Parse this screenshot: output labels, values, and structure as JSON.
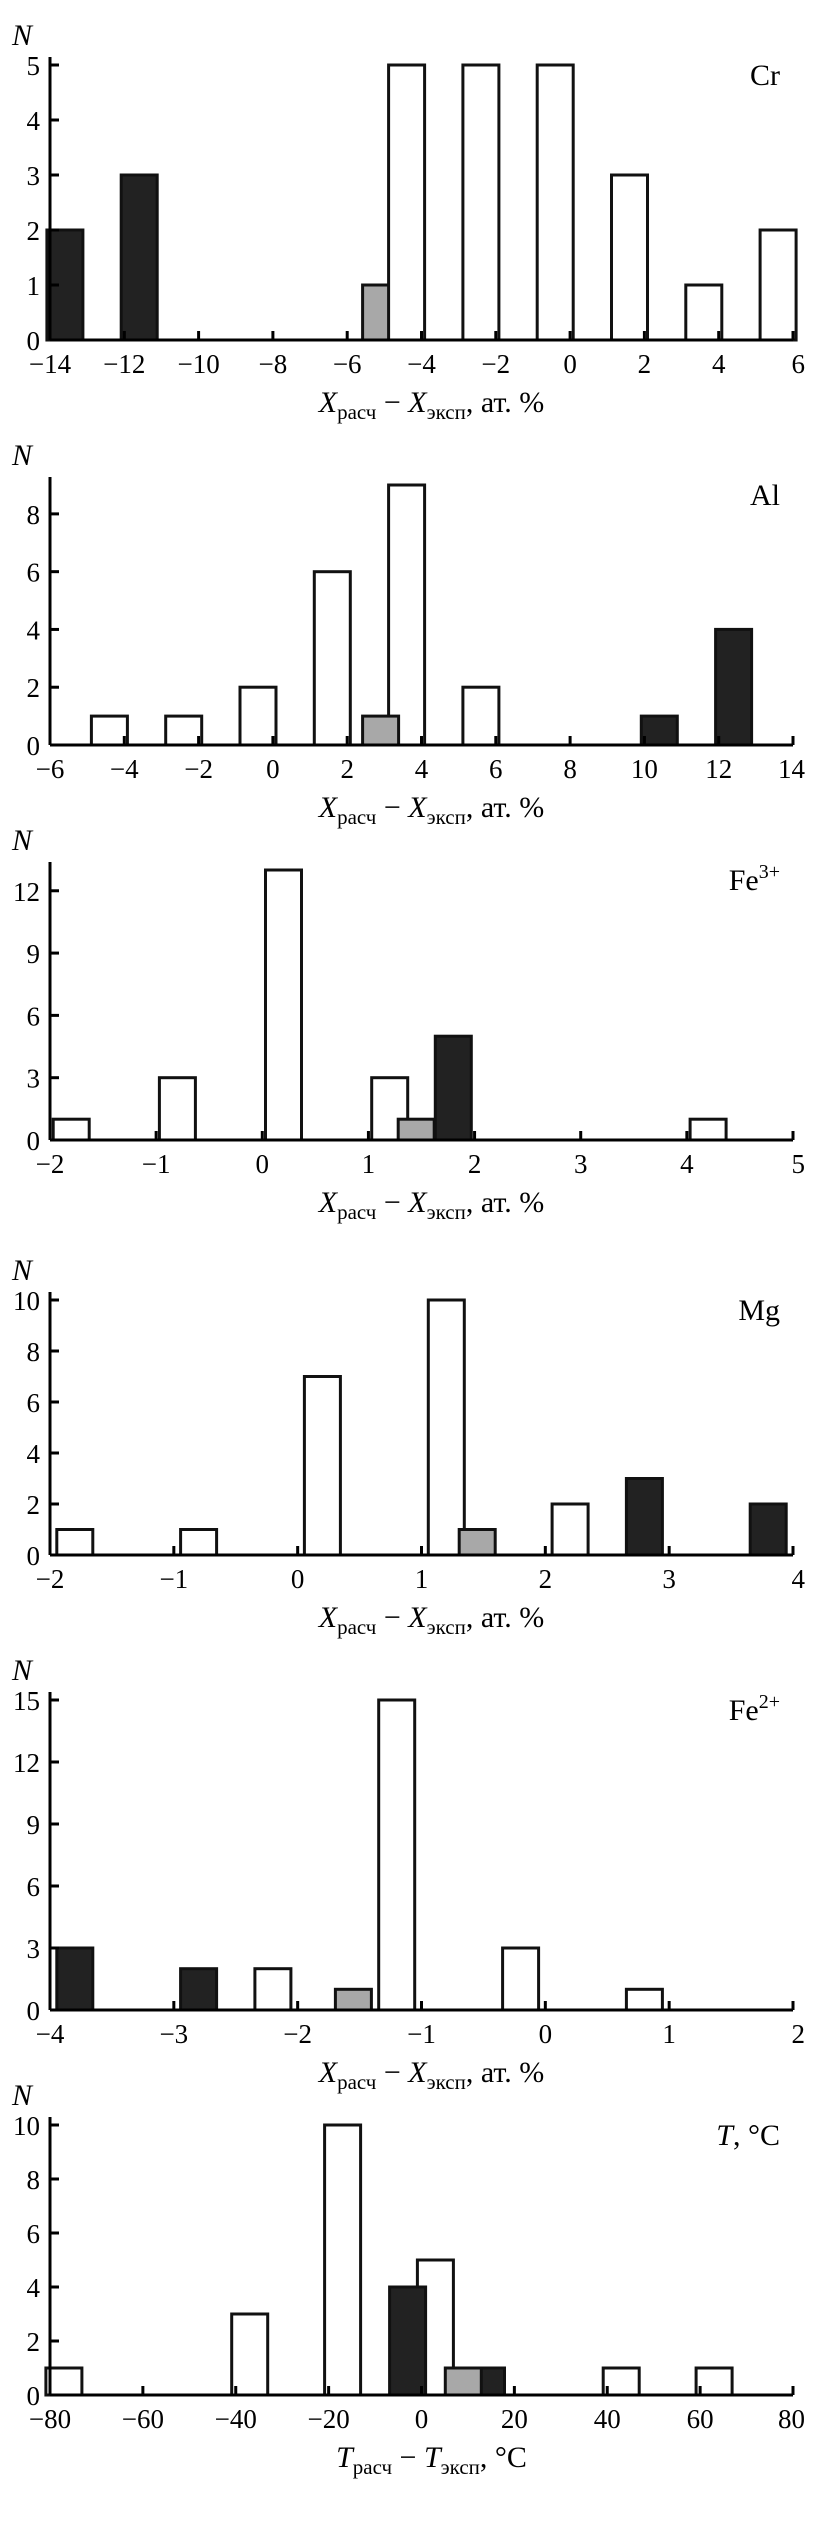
{
  "chart_data": [
    {
      "type": "bar",
      "ylabel": "N",
      "title": "Cr",
      "xlabel": {
        "var": "X",
        "sub1": "расч",
        "sub2": "эксп",
        "tail": ", ат. %"
      },
      "xlim": [
        -14,
        6
      ],
      "ylim": [
        0,
        5
      ],
      "xticks": [
        "−14",
        "−12",
        "−10",
        "−8",
        "−6",
        "−4",
        "−2",
        "0",
        "2",
        "4",
        "6"
      ],
      "yticks": [
        "0",
        "1",
        "2",
        "3",
        "4",
        "5"
      ],
      "series": [
        {
          "name": "black",
          "color": "#222222",
          "points": [
            {
              "x": -13.6,
              "v": 2
            },
            {
              "x": -11.6,
              "v": 3
            }
          ]
        },
        {
          "name": "gray",
          "color": "#a8a8a8",
          "points": [
            {
              "x": -5.1,
              "v": 1
            }
          ]
        },
        {
          "name": "white",
          "color": "#ffffff",
          "points": [
            {
              "x": -4.4,
              "v": 5
            },
            {
              "x": -2.4,
              "v": 5
            },
            {
              "x": -0.4,
              "v": 5
            },
            {
              "x": 1.6,
              "v": 3
            },
            {
              "x": 3.6,
              "v": 1
            },
            {
              "x": 5.6,
              "v": 2
            }
          ]
        }
      ]
    },
    {
      "type": "bar",
      "ylabel": "N",
      "title": "Al",
      "xlabel": {
        "var": "X",
        "sub1": "расч",
        "sub2": "эксп",
        "tail": ", ат. %"
      },
      "xlim": [
        -6,
        14
      ],
      "ylim": [
        0,
        9
      ],
      "xticks": [
        "−6",
        "−4",
        "−2",
        "0",
        "2",
        "4",
        "6",
        "8",
        "10",
        "12",
        "14"
      ],
      "yticks": [
        "0",
        "2",
        "4",
        "6",
        "8"
      ],
      "series": [
        {
          "name": "white",
          "color": "#ffffff",
          "points": [
            {
              "x": -4.4,
              "v": 1
            },
            {
              "x": -2.4,
              "v": 1
            },
            {
              "x": -0.4,
              "v": 2
            },
            {
              "x": 1.6,
              "v": 6
            },
            {
              "x": 3.6,
              "v": 9
            },
            {
              "x": 5.6,
              "v": 2
            }
          ]
        },
        {
          "name": "gray",
          "color": "#a8a8a8",
          "points": [
            {
              "x": 2.9,
              "v": 1
            }
          ]
        },
        {
          "name": "black",
          "color": "#222222",
          "points": [
            {
              "x": 10.4,
              "v": 1
            },
            {
              "x": 12.4,
              "v": 4
            }
          ]
        }
      ]
    },
    {
      "type": "bar",
      "ylabel": "N",
      "title": "Fe",
      "title_sup": "3+",
      "xlabel": {
        "var": "X",
        "sub1": "расч",
        "sub2": "эксп",
        "tail": ", ат. %"
      },
      "xlim": [
        -2,
        5
      ],
      "ylim": [
        0,
        13
      ],
      "xticks": [
        "−2",
        "−1",
        "0",
        "1",
        "2",
        "3",
        "4",
        "5"
      ],
      "yticks": [
        "0",
        "3",
        "6",
        "9",
        "12"
      ],
      "series": [
        {
          "name": "white",
          "color": "#ffffff",
          "points": [
            {
              "x": -1.8,
              "v": 1
            },
            {
              "x": -0.8,
              "v": 3
            },
            {
              "x": 0.2,
              "v": 13
            },
            {
              "x": 1.2,
              "v": 3
            },
            {
              "x": 4.2,
              "v": 1
            }
          ]
        },
        {
          "name": "gray",
          "color": "#a8a8a8",
          "points": [
            {
              "x": 1.45,
              "v": 1
            }
          ]
        },
        {
          "name": "black",
          "color": "#222222",
          "points": [
            {
              "x": 1.8,
              "v": 5
            }
          ]
        }
      ]
    },
    {
      "type": "bar",
      "ylabel": "N",
      "title": "Mg",
      "xlabel": {
        "var": "X",
        "sub1": "расч",
        "sub2": "эксп",
        "tail": ", ат. %"
      },
      "xlim": [
        -2,
        4
      ],
      "ylim": [
        0,
        10
      ],
      "xticks": [
        "−2",
        "−1",
        "0",
        "1",
        "2",
        "3",
        "4"
      ],
      "yticks": [
        "0",
        "2",
        "4",
        "6",
        "8",
        "10"
      ],
      "series": [
        {
          "name": "white",
          "color": "#ffffff",
          "points": [
            {
              "x": -1.8,
              "v": 1
            },
            {
              "x": -0.8,
              "v": 1
            },
            {
              "x": 0.2,
              "v": 7
            },
            {
              "x": 1.2,
              "v": 10
            },
            {
              "x": 2.2,
              "v": 2
            }
          ]
        },
        {
          "name": "gray",
          "color": "#a8a8a8",
          "points": [
            {
              "x": 1.45,
              "v": 1
            }
          ]
        },
        {
          "name": "black",
          "color": "#222222",
          "points": [
            {
              "x": 2.8,
              "v": 3
            },
            {
              "x": 3.8,
              "v": 2
            }
          ]
        }
      ]
    },
    {
      "type": "bar",
      "ylabel": "N",
      "title": "Fe",
      "title_sup": "2+",
      "xlabel": {
        "var": "X",
        "sub1": "расч",
        "sub2": "эксп",
        "tail": ", ат. %"
      },
      "xlim": [
        -4,
        2
      ],
      "ylim": [
        0,
        15
      ],
      "xticks": [
        "−4",
        "−3",
        "−2",
        "−1",
        "0",
        "1",
        "2"
      ],
      "yticks": [
        "0",
        "3",
        "6",
        "9",
        "12",
        "15"
      ],
      "series": [
        {
          "name": "black",
          "color": "#222222",
          "points": [
            {
              "x": -3.8,
              "v": 3
            },
            {
              "x": -2.8,
              "v": 2
            }
          ]
        },
        {
          "name": "white",
          "color": "#ffffff",
          "points": [
            {
              "x": -2.2,
              "v": 2
            },
            {
              "x": -1.2,
              "v": 15
            },
            {
              "x": -0.2,
              "v": 3
            },
            {
              "x": 0.8,
              "v": 1
            }
          ]
        },
        {
          "name": "gray",
          "color": "#a8a8a8",
          "points": [
            {
              "x": -1.55,
              "v": 1
            }
          ]
        }
      ]
    },
    {
      "type": "bar",
      "ylabel": "N",
      "title": "T",
      "title_tail": ", °C",
      "xlabel": {
        "var": "T",
        "sub1": "расч",
        "sub2": "эксп",
        "tail": ", °C"
      },
      "xlim": [
        -80,
        80
      ],
      "ylim": [
        0,
        10
      ],
      "xticks": [
        "−80",
        "−60",
        "−40",
        "−20",
        "0",
        "20",
        "40",
        "60",
        "80"
      ],
      "yticks": [
        "0",
        "2",
        "4",
        "6",
        "8",
        "10"
      ],
      "series": [
        {
          "name": "white",
          "color": "#ffffff",
          "points": [
            {
              "x": -77,
              "v": 1
            },
            {
              "x": -37,
              "v": 3
            },
            {
              "x": -17,
              "v": 10
            },
            {
              "x": 3,
              "v": 5
            },
            {
              "x": 43,
              "v": 1
            },
            {
              "x": 63,
              "v": 1
            }
          ]
        },
        {
          "name": "black",
          "color": "#222222",
          "points": [
            {
              "x": -3,
              "v": 4
            },
            {
              "x": 14,
              "v": 1
            }
          ]
        },
        {
          "name": "gray",
          "color": "#a8a8a8",
          "points": [
            {
              "x": 9,
              "v": 1
            }
          ]
        }
      ]
    }
  ]
}
